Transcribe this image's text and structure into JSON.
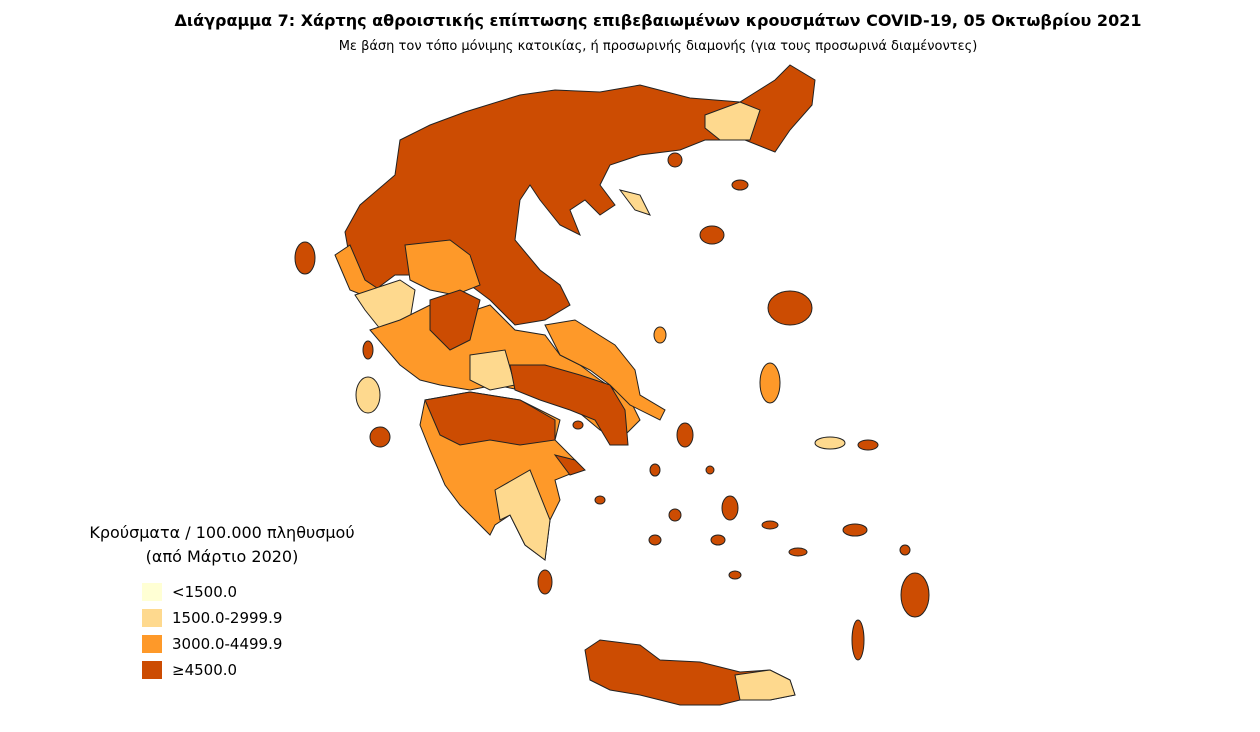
{
  "header": {
    "title": "Διάγραμμα 7: Χάρτης αθροιστικής επίπτωσης επιβεβαιωμένων κρουσμάτων COVID-19, 05 Οκτωβρίου 2021",
    "subtitle": "Με βάση τον τόπο μόνιμης κατοικίας, ή προσωρινής διαμονής (για τους προσωρινά διαμένοντες)"
  },
  "legend": {
    "title_lines": [
      "Κρούσματα / 100.000 πληθυσμού",
      "(από Μάρτιο 2020)"
    ],
    "items": [
      {
        "label": "<1500.0",
        "color": "#ffffd4"
      },
      {
        "label": "1500.0-2999.9",
        "color": "#fed98e"
      },
      {
        "label": "3000.0-4499.9",
        "color": "#fe9929"
      },
      {
        "label": "≥4500.0",
        "color": "#cc4c02"
      }
    ]
  }
}
